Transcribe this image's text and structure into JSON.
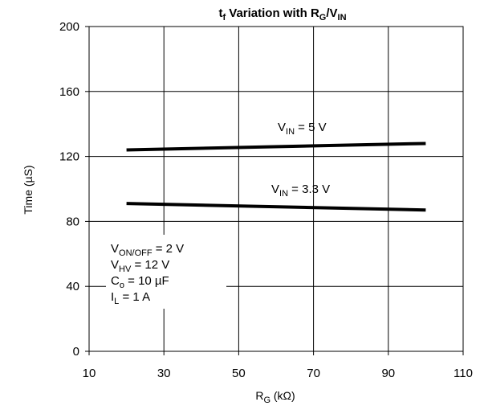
{
  "chart_data": {
    "type": "line",
    "title": {
      "main": "t",
      "sub1": "f",
      "mid": " Variation with R",
      "sub2": "G",
      "slash": "/V",
      "sub3": "IN"
    },
    "xlabel": {
      "main": "R",
      "sub": "G",
      "unit": " (kΩ)"
    },
    "ylabel": "Time  (µS)",
    "xlim": [
      10,
      110
    ],
    "ylim": [
      0,
      200
    ],
    "xticks": [
      "10",
      "30",
      "50",
      "70",
      "90",
      "110"
    ],
    "yticks": [
      "0",
      "40",
      "80",
      "120",
      "160",
      "200"
    ],
    "grid": true,
    "series": [
      {
        "label": {
          "main": "V",
          "sub": "IN",
          "rest": " = 5 V"
        },
        "x": [
          20,
          100
        ],
        "values": [
          124,
          128
        ]
      },
      {
        "label": {
          "main": "V",
          "sub": "IN",
          "rest": " = 3.3 V"
        },
        "x": [
          20,
          100
        ],
        "values": [
          91,
          87
        ]
      }
    ],
    "conditions": [
      {
        "main": "V",
        "sub": "ON/OFF",
        "rest": " = 2 V"
      },
      {
        "main": "V",
        "sub": "HV",
        "rest": " = 12 V"
      },
      {
        "main": "C",
        "sub": "o",
        "rest": " = 10 µF"
      },
      {
        "main": "I",
        "sub": "L",
        "rest": " = 1 A"
      }
    ]
  }
}
